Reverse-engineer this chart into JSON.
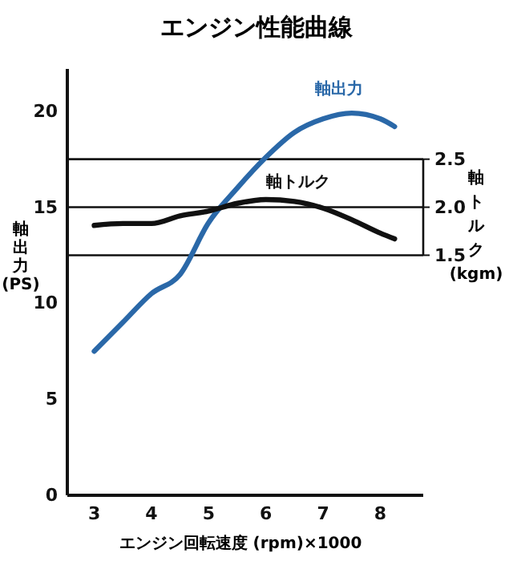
{
  "chart_data": {
    "type": "line",
    "title": "エンジン性能曲線",
    "xlabel": "エンジン回転速度 (rpm)×1000",
    "ylabel": "軸出力(PS)",
    "y2label": "軸トルク(kgm)",
    "xlim": [
      2.53,
      8.75
    ],
    "xticks": [
      3,
      4,
      5,
      6,
      7,
      8
    ],
    "ylim": [
      0,
      22.2
    ],
    "yticks": [
      0,
      5,
      10,
      15,
      20
    ],
    "y2lim": [
      -1.0,
      3.44
    ],
    "y2ticks": [
      {
        "value": 1.5,
        "label": "1.5"
      },
      {
        "value": 2,
        "label": "2.0"
      },
      {
        "value": 2.5,
        "label": "2.5"
      }
    ],
    "ref_lines": [
      {
        "axis": "y2",
        "value": 1.5
      },
      {
        "axis": "y2",
        "value": 2
      },
      {
        "axis": "y2",
        "value": 2.5
      }
    ],
    "x": [
      3,
      3.5,
      4,
      4.5,
      5,
      5.5,
      6,
      6.5,
      7,
      7.5,
      8,
      8.25
    ],
    "series": [
      {
        "name": "軸出力",
        "color": "#2a68a8",
        "values": [
          7.5,
          9.0,
          10.5,
          11.5,
          14.2,
          16.0,
          17.6,
          18.9,
          19.6,
          19.9,
          19.6,
          19.2
        ]
      },
      {
        "name": "軸トルク",
        "color": "#111111",
        "axis": "y2",
        "values": [
          1.81,
          1.83,
          1.83,
          1.91,
          1.96,
          2.04,
          2.08,
          2.06,
          1.99,
          1.87,
          1.73,
          1.67
        ]
      }
    ],
    "marker": "none",
    "line_style": "solid",
    "legend": false,
    "grid": false
  }
}
